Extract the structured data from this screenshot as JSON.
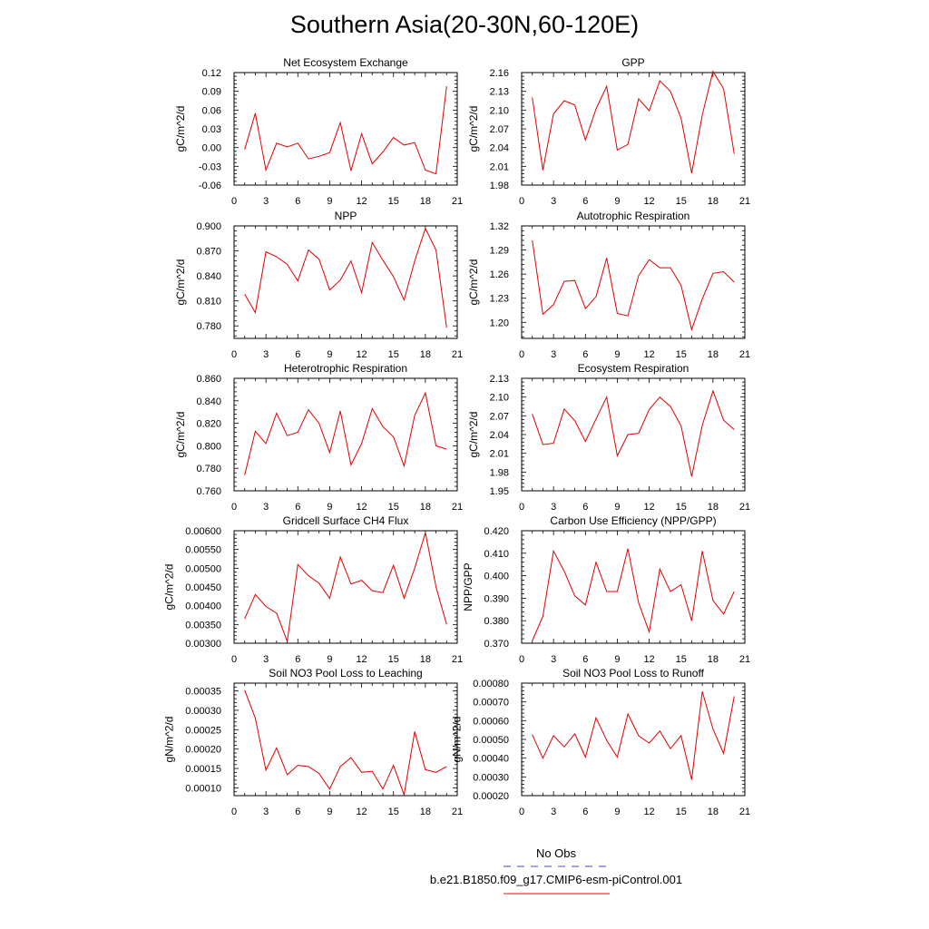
{
  "title": "Southern Asia(20-30N,60-120E)",
  "legend": {
    "entries": [
      {
        "label": "No Obs",
        "color": "#6a6ad8",
        "dashed": true
      },
      {
        "label": "b.e21.B1850.f09_g17.CMIP6-esm-piControl.001",
        "color": "#e84040",
        "dashed": false
      }
    ]
  },
  "chart_data": [
    {
      "type": "line",
      "title": "Net Ecosystem Exchange",
      "ylabel": "gC/m^2/d",
      "xlim": [
        0,
        21
      ],
      "xticks": [
        0,
        3,
        6,
        9,
        12,
        15,
        18,
        21
      ],
      "xticklabels": [
        "0",
        "3",
        "6",
        "9",
        "12",
        "15",
        "18",
        "21"
      ],
      "ylim": [
        -0.06,
        0.12
      ],
      "yticks": [
        -0.06,
        -0.03,
        0.0,
        0.03,
        0.06,
        0.09,
        0.12
      ],
      "yticklabels": [
        "-0.06",
        "-0.03",
        "0.00",
        "0.03",
        "0.06",
        "0.09",
        "0.12"
      ],
      "color": "#e00000",
      "x": [
        1,
        2,
        3,
        4,
        5,
        6,
        7,
        8,
        9,
        10,
        11,
        12,
        13,
        14,
        15,
        16,
        17,
        18,
        19,
        20
      ],
      "y": [
        -0.003,
        0.055,
        -0.036,
        0.007,
        0.001,
        0.007,
        -0.018,
        -0.014,
        -0.008,
        0.04,
        -0.037,
        0.022,
        -0.026,
        -0.007,
        0.016,
        0.004,
        0.008,
        -0.036,
        -0.042,
        0.098
      ]
    },
    {
      "type": "line",
      "title": "GPP",
      "ylabel": "gC/m^2/d",
      "xlim": [
        0,
        21
      ],
      "xticks": [
        0,
        3,
        6,
        9,
        12,
        15,
        18,
        21
      ],
      "xticklabels": [
        "0",
        "3",
        "6",
        "9",
        "12",
        "15",
        "18",
        "21"
      ],
      "ylim": [
        1.98,
        2.16
      ],
      "yticks": [
        1.98,
        2.01,
        2.04,
        2.07,
        2.1,
        2.13,
        2.16
      ],
      "yticklabels": [
        "1.98",
        "2.01",
        "2.04",
        "2.07",
        "2.10",
        "2.13",
        "2.16"
      ],
      "color": "#e00000",
      "x": [
        1,
        2,
        3,
        4,
        5,
        6,
        7,
        8,
        9,
        10,
        11,
        12,
        13,
        14,
        15,
        16,
        17,
        18,
        19,
        20
      ],
      "y": [
        2.12,
        2.004,
        2.094,
        2.115,
        2.108,
        2.052,
        2.102,
        2.138,
        2.036,
        2.045,
        2.118,
        2.099,
        2.147,
        2.13,
        2.087,
        1.999,
        2.092,
        2.162,
        2.134,
        2.03
      ]
    },
    {
      "type": "line",
      "title": "NPP",
      "ylabel": "gC/m^2/d",
      "xlim": [
        0,
        21
      ],
      "xticks": [
        0,
        3,
        6,
        9,
        12,
        15,
        18,
        21
      ],
      "xticklabels": [
        "0",
        "3",
        "6",
        "9",
        "12",
        "15",
        "18",
        "21"
      ],
      "ylim": [
        0.765,
        0.9
      ],
      "yticks": [
        0.78,
        0.81,
        0.84,
        0.87,
        0.9
      ],
      "yticklabels": [
        "0.780",
        "0.810",
        "0.840",
        "0.870",
        "0.900"
      ],
      "color": "#e00000",
      "x": [
        1,
        2,
        3,
        4,
        5,
        6,
        7,
        8,
        9,
        10,
        11,
        12,
        13,
        14,
        15,
        16,
        17,
        18,
        19,
        20
      ],
      "y": [
        0.818,
        0.796,
        0.869,
        0.863,
        0.854,
        0.834,
        0.871,
        0.86,
        0.823,
        0.835,
        0.858,
        0.82,
        0.88,
        0.859,
        0.839,
        0.811,
        0.858,
        0.897,
        0.871,
        0.778
      ]
    },
    {
      "type": "line",
      "title": "Autotrophic Respiration",
      "ylabel": "gC/m^2/d",
      "xlim": [
        0,
        21
      ],
      "xticks": [
        0,
        3,
        6,
        9,
        12,
        15,
        18,
        21
      ],
      "xticklabels": [
        "0",
        "3",
        "6",
        "9",
        "12",
        "15",
        "18",
        "21"
      ],
      "ylim": [
        1.18,
        1.32
      ],
      "yticks": [
        1.2,
        1.23,
        1.26,
        1.29,
        1.32
      ],
      "yticklabels": [
        "1.20",
        "1.23",
        "1.26",
        "1.29",
        "1.32"
      ],
      "color": "#e00000",
      "x": [
        1,
        2,
        3,
        4,
        5,
        6,
        7,
        8,
        9,
        10,
        11,
        12,
        13,
        14,
        15,
        16,
        17,
        18,
        19,
        20
      ],
      "y": [
        1.302,
        1.21,
        1.222,
        1.251,
        1.252,
        1.217,
        1.232,
        1.28,
        1.211,
        1.208,
        1.258,
        1.278,
        1.268,
        1.268,
        1.246,
        1.191,
        1.229,
        1.261,
        1.263,
        1.25
      ]
    },
    {
      "type": "line",
      "title": "Heterotrophic Respiration",
      "ylabel": "gC/m^2/d",
      "xlim": [
        0,
        21
      ],
      "xticks": [
        0,
        3,
        6,
        9,
        12,
        15,
        18,
        21
      ],
      "xticklabels": [
        "0",
        "3",
        "6",
        "9",
        "12",
        "15",
        "18",
        "21"
      ],
      "ylim": [
        0.76,
        0.86
      ],
      "yticks": [
        0.76,
        0.78,
        0.8,
        0.82,
        0.84,
        0.86
      ],
      "yticklabels": [
        "0.760",
        "0.780",
        "0.800",
        "0.820",
        "0.840",
        "0.860"
      ],
      "color": "#e00000",
      "x": [
        1,
        2,
        3,
        4,
        5,
        6,
        7,
        8,
        9,
        10,
        11,
        12,
        13,
        14,
        15,
        16,
        17,
        18,
        19,
        20
      ],
      "y": [
        0.774,
        0.813,
        0.802,
        0.829,
        0.809,
        0.812,
        0.832,
        0.82,
        0.794,
        0.831,
        0.783,
        0.802,
        0.833,
        0.817,
        0.808,
        0.782,
        0.827,
        0.847,
        0.8,
        0.797
      ]
    },
    {
      "type": "line",
      "title": "Ecosystem Respiration",
      "ylabel": "gC/m^2/d",
      "xlim": [
        0,
        21
      ],
      "xticks": [
        0,
        3,
        6,
        9,
        12,
        15,
        18,
        21
      ],
      "xticklabels": [
        "0",
        "3",
        "6",
        "9",
        "12",
        "15",
        "18",
        "21"
      ],
      "ylim": [
        1.95,
        2.13
      ],
      "yticks": [
        1.95,
        1.98,
        2.01,
        2.04,
        2.07,
        2.1,
        2.13
      ],
      "yticklabels": [
        "1.95",
        "1.98",
        "2.01",
        "2.04",
        "2.07",
        "2.10",
        "2.13"
      ],
      "color": "#e00000",
      "x": [
        1,
        2,
        3,
        4,
        5,
        6,
        7,
        8,
        9,
        10,
        11,
        12,
        13,
        14,
        15,
        16,
        17,
        18,
        19,
        20
      ],
      "y": [
        2.073,
        2.024,
        2.026,
        2.081,
        2.062,
        2.029,
        2.065,
        2.1,
        2.006,
        2.04,
        2.042,
        2.08,
        2.1,
        2.085,
        2.054,
        1.973,
        2.055,
        2.11,
        2.063,
        2.048
      ]
    },
    {
      "type": "line",
      "title": "Gridcell Surface CH4 Flux",
      "ylabel": "gC/m^2/d",
      "xlim": [
        0,
        21
      ],
      "xticks": [
        0,
        3,
        6,
        9,
        12,
        15,
        18,
        21
      ],
      "xticklabels": [
        "0",
        "3",
        "6",
        "9",
        "12",
        "15",
        "18",
        "21"
      ],
      "ylim": [
        0.003,
        0.006
      ],
      "yticks": [
        0.003,
        0.0035,
        0.004,
        0.0045,
        0.005,
        0.0055,
        0.006
      ],
      "yticklabels": [
        "0.00300",
        "0.00350",
        "0.00400",
        "0.00450",
        "0.00500",
        "0.00550",
        "0.00600"
      ],
      "color": "#e00000",
      "x": [
        1,
        2,
        3,
        4,
        5,
        6,
        7,
        8,
        9,
        10,
        11,
        12,
        13,
        14,
        15,
        16,
        17,
        18,
        19,
        20
      ],
      "y": [
        0.00365,
        0.0043,
        0.00398,
        0.0038,
        0.00305,
        0.0051,
        0.0048,
        0.0046,
        0.0042,
        0.0053,
        0.00458,
        0.00468,
        0.0044,
        0.00435,
        0.00508,
        0.0042,
        0.005,
        0.00595,
        0.0045,
        0.0035
      ]
    },
    {
      "type": "line",
      "title": "Carbon Use Efficiency (NPP/GPP)",
      "ylabel": "NPP/GPP",
      "xlim": [
        0,
        21
      ],
      "xticks": [
        0,
        3,
        6,
        9,
        12,
        15,
        18,
        21
      ],
      "xticklabels": [
        "0",
        "3",
        "6",
        "9",
        "12",
        "15",
        "18",
        "21"
      ],
      "ylim": [
        0.37,
        0.42
      ],
      "yticks": [
        0.37,
        0.38,
        0.39,
        0.4,
        0.41,
        0.42
      ],
      "yticklabels": [
        "0.370",
        "0.380",
        "0.390",
        "0.400",
        "0.410",
        "0.420"
      ],
      "color": "#e00000",
      "x": [
        1,
        2,
        3,
        4,
        5,
        6,
        7,
        8,
        9,
        10,
        11,
        12,
        13,
        14,
        15,
        16,
        17,
        18,
        19,
        20
      ],
      "y": [
        0.371,
        0.382,
        0.411,
        0.402,
        0.391,
        0.387,
        0.406,
        0.393,
        0.393,
        0.412,
        0.388,
        0.375,
        0.403,
        0.393,
        0.396,
        0.38,
        0.411,
        0.389,
        0.383,
        0.393
      ]
    },
    {
      "type": "line",
      "title": "Soil NO3 Pool Loss to Leaching",
      "ylabel": "gN/m^2/d",
      "xlim": [
        0,
        21
      ],
      "xticks": [
        0,
        3,
        6,
        9,
        12,
        15,
        18,
        21
      ],
      "xticklabels": [
        "0",
        "3",
        "6",
        "9",
        "12",
        "15",
        "18",
        "21"
      ],
      "ylim": [
        8e-05,
        0.00037
      ],
      "yticks": [
        0.0001,
        0.00015,
        0.0002,
        0.00025,
        0.0003,
        0.00035
      ],
      "yticklabels": [
        "0.00010",
        "0.00015",
        "0.00020",
        "0.00025",
        "0.00030",
        "0.00035"
      ],
      "color": "#e00000",
      "x": [
        1,
        2,
        3,
        4,
        5,
        6,
        7,
        8,
        9,
        10,
        11,
        12,
        13,
        14,
        15,
        16,
        17,
        18,
        19,
        20
      ],
      "y": [
        0.000352,
        0.00028,
        0.000146,
        0.000203,
        0.000134,
        0.000158,
        0.000155,
        0.000137,
        9.7e-05,
        0.000155,
        0.000178,
        0.00014,
        0.000143,
        9.7e-05,
        0.000158,
        8.2e-05,
        0.000245,
        0.000147,
        0.00014,
        0.000155
      ]
    },
    {
      "type": "line",
      "title": "Soil NO3 Pool Loss to Runoff",
      "ylabel": "gN/m^2/d",
      "xlim": [
        0,
        21
      ],
      "xticks": [
        0,
        3,
        6,
        9,
        12,
        15,
        18,
        21
      ],
      "xticklabels": [
        "0",
        "3",
        "6",
        "9",
        "12",
        "15",
        "18",
        "21"
      ],
      "ylim": [
        0.0002,
        0.0008
      ],
      "yticks": [
        0.0002,
        0.0003,
        0.0004,
        0.0005,
        0.0006,
        0.0007,
        0.0008
      ],
      "yticklabels": [
        "0.00020",
        "0.00030",
        "0.00040",
        "0.00050",
        "0.00060",
        "0.00070",
        "0.00080"
      ],
      "color": "#e00000",
      "x": [
        1,
        2,
        3,
        4,
        5,
        6,
        7,
        8,
        9,
        10,
        11,
        12,
        13,
        14,
        15,
        16,
        17,
        18,
        19,
        20
      ],
      "y": [
        0.000525,
        0.0004,
        0.00052,
        0.00046,
        0.00053,
        0.000405,
        0.000615,
        0.000495,
        0.000405,
        0.000635,
        0.00052,
        0.00048,
        0.000545,
        0.00045,
        0.00052,
        0.000285,
        0.000755,
        0.000555,
        0.000425,
        0.00073
      ]
    }
  ]
}
